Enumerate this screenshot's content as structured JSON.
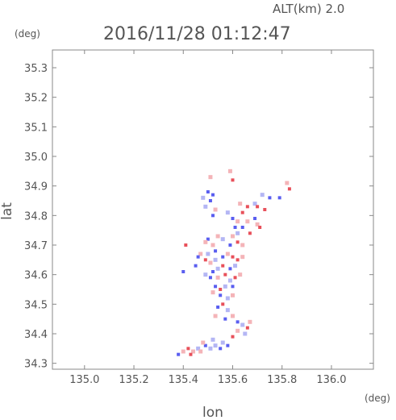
{
  "header": {
    "alt_label": "ALT(km) 2.0",
    "timestamp": "2016/11/28 01:12:47",
    "y_unit": "(deg)",
    "x_unit": "(deg)"
  },
  "chart_data": {
    "type": "scatter",
    "title": "2016/11/28 01:12:47",
    "subtitle": "ALT(km) 2.0",
    "xlabel": "lon",
    "ylabel": "lat",
    "xlim": [
      134.87,
      136.17
    ],
    "ylim": [
      34.28,
      35.36
    ],
    "xticks": [
      135.0,
      135.2,
      135.4,
      135.6,
      135.8,
      136.0
    ],
    "xtick_labels": [
      "135.0",
      "135.2",
      "135.4",
      "135.6",
      "135.8",
      "136.0"
    ],
    "yticks": [
      34.3,
      34.4,
      34.5,
      34.6,
      34.7,
      34.8,
      34.9,
      35.0,
      35.1,
      35.2,
      35.3
    ],
    "ytick_labels": [
      "34.3",
      "34.4",
      "34.5",
      "34.6",
      "34.7",
      "34.8",
      "34.9",
      "35.0",
      "35.1",
      "35.2",
      "35.3"
    ],
    "grid": false,
    "colors": {
      "positive": "#e8505a",
      "negative": "#5a5ef0",
      "weak_positive": "#f4b4b8",
      "weak_negative": "#b4b6f4",
      "axis": "#888888"
    },
    "series": [
      {
        "values": [
          [
            135.5,
            34.88,
            "n"
          ],
          [
            135.52,
            34.87,
            "n"
          ],
          [
            135.51,
            34.85,
            "n"
          ],
          [
            135.49,
            34.83,
            "wn"
          ],
          [
            135.53,
            34.82,
            "wp"
          ],
          [
            135.52,
            34.8,
            "n"
          ],
          [
            135.48,
            34.86,
            "wn"
          ],
          [
            135.6,
            34.92,
            "p"
          ],
          [
            135.58,
            34.81,
            "wn"
          ],
          [
            135.6,
            34.79,
            "n"
          ],
          [
            135.63,
            34.84,
            "wp"
          ],
          [
            135.66,
            34.83,
            "p"
          ],
          [
            135.69,
            34.84,
            "wn"
          ],
          [
            135.7,
            34.83,
            "p"
          ],
          [
            135.73,
            34.82,
            "p"
          ],
          [
            135.75,
            34.86,
            "n"
          ],
          [
            135.72,
            34.87,
            "wn"
          ],
          [
            135.83,
            34.89,
            "p"
          ],
          [
            135.82,
            34.91,
            "wp"
          ],
          [
            135.64,
            34.81,
            "p"
          ],
          [
            135.62,
            34.78,
            "wp"
          ],
          [
            135.61,
            34.76,
            "n"
          ],
          [
            135.62,
            34.74,
            "wn"
          ],
          [
            135.64,
            34.76,
            "n"
          ],
          [
            135.66,
            34.78,
            "wp"
          ],
          [
            135.69,
            34.79,
            "n"
          ],
          [
            135.7,
            34.77,
            "wp"
          ],
          [
            135.71,
            34.76,
            "p"
          ],
          [
            135.67,
            34.74,
            "p"
          ],
          [
            135.6,
            34.73,
            "wp"
          ],
          [
            135.62,
            34.71,
            "p"
          ],
          [
            135.64,
            34.7,
            "wp"
          ],
          [
            135.59,
            34.7,
            "n"
          ],
          [
            135.56,
            34.72,
            "wn"
          ],
          [
            135.54,
            34.73,
            "wp"
          ],
          [
            135.5,
            34.72,
            "n"
          ],
          [
            135.49,
            34.71,
            "wp"
          ],
          [
            135.52,
            34.7,
            "wp"
          ],
          [
            135.53,
            34.68,
            "n"
          ],
          [
            135.5,
            34.67,
            "wn"
          ],
          [
            135.47,
            34.67,
            "wp"
          ],
          [
            135.46,
            34.66,
            "n"
          ],
          [
            135.49,
            34.65,
            "p"
          ],
          [
            135.51,
            34.64,
            "wp"
          ],
          [
            135.53,
            34.65,
            "wn"
          ],
          [
            135.56,
            34.66,
            "n"
          ],
          [
            135.58,
            34.67,
            "wp"
          ],
          [
            135.6,
            34.66,
            "p"
          ],
          [
            135.62,
            34.65,
            "p"
          ],
          [
            135.64,
            34.66,
            "wp"
          ],
          [
            135.61,
            34.63,
            "wn"
          ],
          [
            135.59,
            34.62,
            "n"
          ],
          [
            135.56,
            34.63,
            "p"
          ],
          [
            135.54,
            34.62,
            "wn"
          ],
          [
            135.52,
            34.61,
            "n"
          ],
          [
            135.49,
            34.6,
            "wn"
          ],
          [
            135.51,
            34.59,
            "n"
          ],
          [
            135.54,
            34.59,
            "wp"
          ],
          [
            135.57,
            34.6,
            "p"
          ],
          [
            135.59,
            34.58,
            "wn"
          ],
          [
            135.61,
            34.59,
            "p"
          ],
          [
            135.63,
            34.6,
            "wp"
          ],
          [
            135.6,
            34.56,
            "n"
          ],
          [
            135.57,
            34.56,
            "wn"
          ],
          [
            135.55,
            34.55,
            "p"
          ],
          [
            135.53,
            34.56,
            "n"
          ],
          [
            135.52,
            34.54,
            "wp"
          ],
          [
            135.55,
            34.53,
            "n"
          ],
          [
            135.58,
            34.52,
            "wn"
          ],
          [
            135.6,
            34.53,
            "wp"
          ],
          [
            135.56,
            34.5,
            "p"
          ],
          [
            135.54,
            34.49,
            "n"
          ],
          [
            135.58,
            34.48,
            "wn"
          ],
          [
            135.53,
            34.46,
            "wp"
          ],
          [
            135.57,
            34.45,
            "n"
          ],
          [
            135.6,
            34.46,
            "wp"
          ],
          [
            135.62,
            34.44,
            "n"
          ],
          [
            135.64,
            34.43,
            "wn"
          ],
          [
            135.66,
            34.42,
            "p"
          ],
          [
            135.62,
            34.41,
            "wp"
          ],
          [
            135.6,
            34.39,
            "p"
          ],
          [
            135.65,
            34.4,
            "wn"
          ],
          [
            135.67,
            34.44,
            "wp"
          ],
          [
            135.56,
            34.37,
            "wn"
          ],
          [
            135.58,
            34.36,
            "n"
          ],
          [
            135.53,
            34.36,
            "wn"
          ],
          [
            135.49,
            34.36,
            "n"
          ],
          [
            135.46,
            34.35,
            "wn"
          ],
          [
            135.42,
            34.35,
            "p"
          ],
          [
            135.44,
            34.34,
            "wp"
          ],
          [
            135.4,
            34.34,
            "wp"
          ],
          [
            135.38,
            34.33,
            "n"
          ],
          [
            135.43,
            34.33,
            "p"
          ],
          [
            135.47,
            34.34,
            "wp"
          ],
          [
            135.51,
            34.35,
            "wn"
          ],
          [
            135.55,
            34.35,
            "n"
          ],
          [
            135.52,
            34.38,
            "wn"
          ],
          [
            135.48,
            34.37,
            "wp"
          ],
          [
            135.41,
            34.7,
            "p"
          ],
          [
            135.45,
            34.63,
            "n"
          ],
          [
            135.4,
            34.61,
            "n"
          ],
          [
            135.59,
            34.95,
            "wp"
          ],
          [
            135.79,
            34.86,
            "n"
          ],
          [
            135.51,
            34.93,
            "wp"
          ]
        ]
      }
    ]
  }
}
